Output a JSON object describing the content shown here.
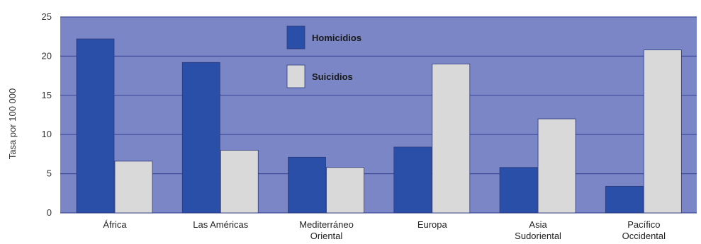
{
  "chart_data": {
    "type": "bar",
    "ylabel": "Tasa por 100 000",
    "ylim": [
      0,
      25
    ],
    "yticks": [
      0,
      5,
      10,
      15,
      20,
      25
    ],
    "grid": true,
    "legend_position": "top-center",
    "categories": [
      [
        "África"
      ],
      [
        "Las Américas"
      ],
      [
        "Mediterráneo",
        "Oriental"
      ],
      [
        "Europa"
      ],
      [
        "Asia",
        "Sudoriental"
      ],
      [
        "Pacífico",
        "Occidental"
      ]
    ],
    "series": [
      {
        "name": "Homicidios",
        "color": "#2a4fa8",
        "values": [
          22.2,
          19.2,
          7.1,
          8.4,
          5.8,
          3.4
        ]
      },
      {
        "name": "Suicidios",
        "color": "#d9d9d9",
        "values": [
          6.6,
          8.0,
          5.8,
          19.0,
          12.0,
          20.8
        ]
      }
    ],
    "colors": {
      "plot_background": "#7b86c6",
      "gridline": "#3f4c9a"
    }
  }
}
